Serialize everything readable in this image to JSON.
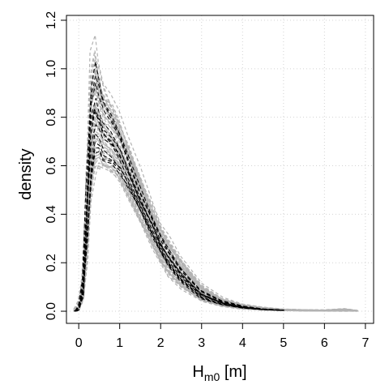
{
  "chart_data": {
    "type": "line",
    "xlabel": "H",
    "xlabel_subscript": "m0",
    "xlabel_suffix": " [m]",
    "ylabel": "density",
    "xlim": [
      -0.3,
      7.2
    ],
    "ylim": [
      -0.05,
      1.22
    ],
    "x_ticks": [
      0,
      1,
      2,
      3,
      4,
      5,
      6,
      7
    ],
    "y_ticks": [
      0.0,
      0.2,
      0.4,
      0.6,
      0.8,
      1.0,
      1.2
    ],
    "x_tick_labels": [
      "0",
      "1",
      "2",
      "3",
      "4",
      "5",
      "6",
      "7"
    ],
    "y_tick_labels": [
      "0.0",
      "0.2",
      "0.4",
      "0.6",
      "0.8",
      "1.0",
      "1.2"
    ],
    "grid": true,
    "grid_style": "dotted",
    "legend": "none",
    "ensemble_series": {
      "style": "dashed",
      "color": "#b3b3b3",
      "count": 60,
      "x": [
        -0.1,
        0.0,
        0.1,
        0.2,
        0.3,
        0.4,
        0.5,
        0.6,
        0.8,
        1.0,
        1.2,
        1.5,
        1.8,
        2.0,
        2.2,
        2.5,
        3.0,
        3.5,
        4.0,
        4.5,
        5.0,
        5.5,
        6.0,
        6.5,
        6.8
      ],
      "y_median": [
        0.0,
        0.01,
        0.08,
        0.35,
        0.7,
        0.82,
        0.8,
        0.76,
        0.68,
        0.62,
        0.56,
        0.46,
        0.35,
        0.28,
        0.22,
        0.15,
        0.07,
        0.035,
        0.018,
        0.009,
        0.005,
        0.003,
        0.002,
        0.003,
        0.001
      ],
      "y_low": [
        0.0,
        0.0,
        0.04,
        0.18,
        0.45,
        0.56,
        0.58,
        0.58,
        0.56,
        0.52,
        0.46,
        0.36,
        0.26,
        0.19,
        0.14,
        0.09,
        0.04,
        0.018,
        0.008,
        0.004,
        0.002,
        0.001,
        0.0,
        0.0,
        0.0
      ],
      "y_high": [
        0.01,
        0.05,
        0.18,
        0.62,
        1.1,
        1.16,
        1.06,
        0.98,
        0.92,
        0.84,
        0.74,
        0.6,
        0.46,
        0.38,
        0.32,
        0.24,
        0.12,
        0.06,
        0.032,
        0.018,
        0.01,
        0.007,
        0.006,
        0.012,
        0.004
      ]
    },
    "highlight_series": {
      "style": "dashed",
      "color": "#000000",
      "count": 12,
      "x": [
        -0.1,
        0.0,
        0.1,
        0.2,
        0.3,
        0.4,
        0.5,
        0.6,
        0.8,
        1.0,
        1.2,
        1.5,
        1.8,
        2.0,
        2.2,
        2.5,
        3.0,
        3.5,
        4.0,
        4.5,
        5.0
      ],
      "y_low": [
        0.0,
        0.0,
        0.05,
        0.22,
        0.52,
        0.62,
        0.62,
        0.6,
        0.58,
        0.55,
        0.5,
        0.4,
        0.3,
        0.23,
        0.18,
        0.12,
        0.05,
        0.025,
        0.012,
        0.006,
        0.003
      ],
      "y_high": [
        0.0,
        0.03,
        0.14,
        0.55,
        0.98,
        1.06,
        0.98,
        0.9,
        0.84,
        0.76,
        0.66,
        0.52,
        0.4,
        0.32,
        0.26,
        0.18,
        0.09,
        0.045,
        0.022,
        0.01,
        0.005
      ]
    }
  }
}
